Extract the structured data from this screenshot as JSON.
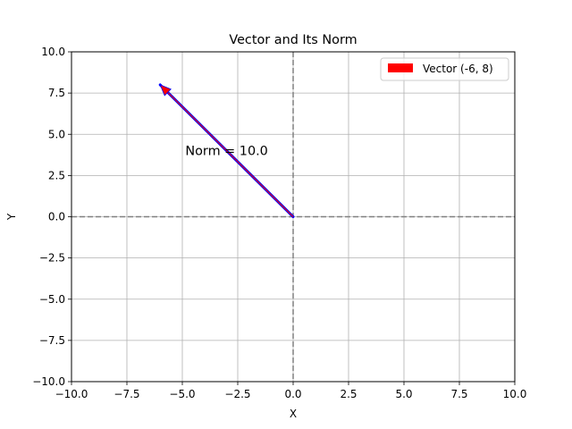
{
  "chart_data": {
    "type": "vector",
    "title": "Vector and Its Norm",
    "xlabel": "X",
    "ylabel": "Y",
    "xlim": [
      -10,
      10
    ],
    "ylim": [
      -10,
      10
    ],
    "xticks": [
      -10,
      -7.5,
      -5,
      -2.5,
      0,
      2.5,
      5,
      7.5,
      10
    ],
    "xtick_labels": [
      "−10.0",
      "−7.5",
      "−5.0",
      "−2.5",
      "0.0",
      "2.5",
      "5.0",
      "7.5",
      "10.0"
    ],
    "yticks": [
      -10,
      -7.5,
      -5,
      -2.5,
      0,
      2.5,
      5,
      7.5,
      10
    ],
    "ytick_labels": [
      "−10.0",
      "−7.5",
      "−5.0",
      "−2.5",
      "0.0",
      "2.5",
      "5.0",
      "7.5",
      "10.0"
    ],
    "grid": true,
    "reference_lines": [
      {
        "orientation": "horizontal",
        "value": 0,
        "style": "dashed",
        "color": "#808080"
      },
      {
        "orientation": "vertical",
        "value": 0,
        "style": "dashed",
        "color": "#808080"
      }
    ],
    "vectors": [
      {
        "name": "Vector (-6, 8)",
        "from": [
          0,
          0
        ],
        "to": [
          -6,
          8
        ],
        "color": "#ff0000",
        "outline_color": "#0000ff"
      }
    ],
    "annotation": {
      "text": "Norm = 10.0",
      "x": -3,
      "y": 4
    },
    "legend": {
      "position": "top-right",
      "entries": [
        "Vector (-6, 8)"
      ]
    }
  }
}
